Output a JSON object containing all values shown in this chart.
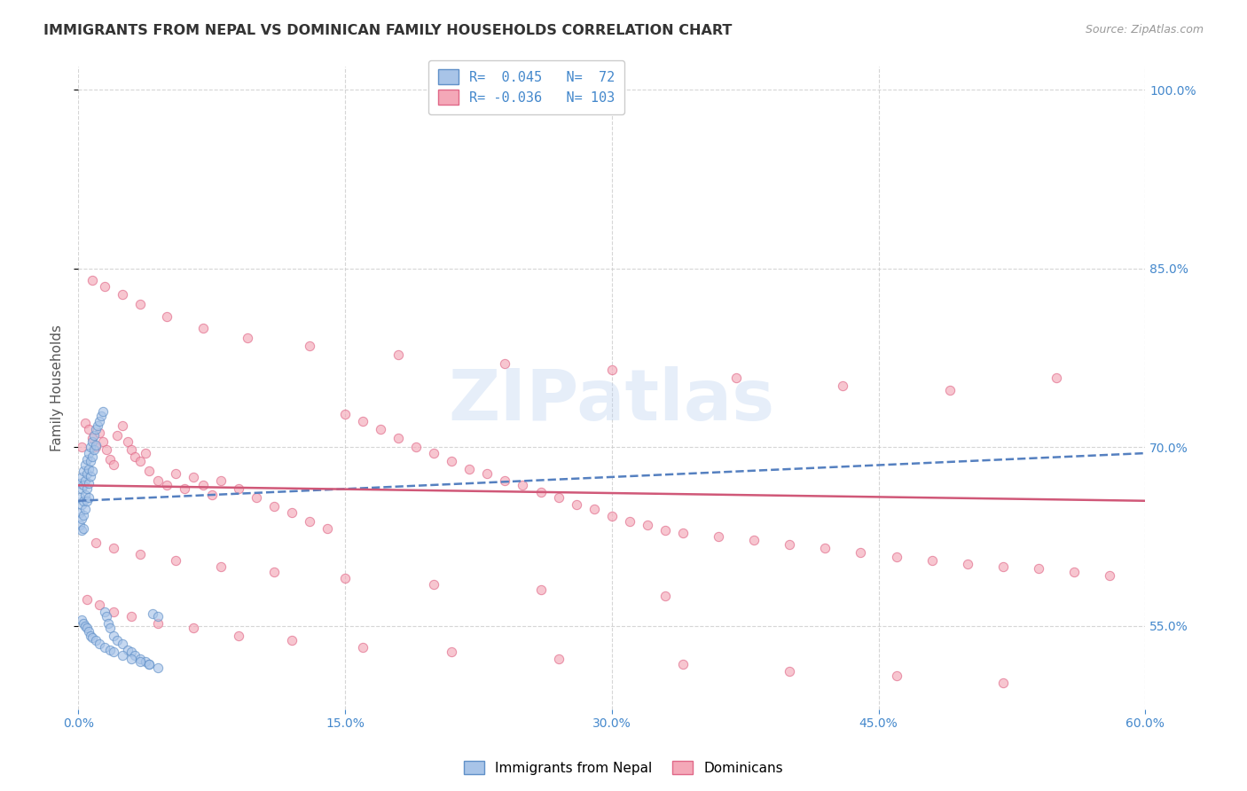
{
  "title": "IMMIGRANTS FROM NEPAL VS DOMINICAN FAMILY HOUSEHOLDS CORRELATION CHART",
  "source": "Source: ZipAtlas.com",
  "ylabel": "Family Households",
  "right_ytick_vals": [
    1.0,
    0.85,
    0.7,
    0.55
  ],
  "nepal_color": "#a8c4e8",
  "dominican_color": "#f4a8b8",
  "nepal_edge_color": "#6090c8",
  "dominican_edge_color": "#e06888",
  "nepal_line_color": "#5580c0",
  "dominican_line_color": "#d05878",
  "watermark": "ZIPatlas",
  "nepal_scatter_x": [
    0.001,
    0.001,
    0.001,
    0.001,
    0.002,
    0.002,
    0.002,
    0.002,
    0.002,
    0.003,
    0.003,
    0.003,
    0.003,
    0.003,
    0.004,
    0.004,
    0.004,
    0.004,
    0.005,
    0.005,
    0.005,
    0.005,
    0.006,
    0.006,
    0.006,
    0.006,
    0.007,
    0.007,
    0.007,
    0.008,
    0.008,
    0.008,
    0.009,
    0.009,
    0.01,
    0.01,
    0.011,
    0.012,
    0.013,
    0.014,
    0.015,
    0.016,
    0.017,
    0.018,
    0.02,
    0.022,
    0.025,
    0.028,
    0.03,
    0.032,
    0.035,
    0.038,
    0.04,
    0.042,
    0.045,
    0.002,
    0.003,
    0.004,
    0.005,
    0.006,
    0.007,
    0.008,
    0.01,
    0.012,
    0.015,
    0.018,
    0.02,
    0.025,
    0.03,
    0.035,
    0.04,
    0.045
  ],
  "nepal_scatter_y": [
    0.67,
    0.658,
    0.645,
    0.635,
    0.675,
    0.665,
    0.652,
    0.64,
    0.63,
    0.68,
    0.668,
    0.655,
    0.643,
    0.632,
    0.685,
    0.672,
    0.66,
    0.648,
    0.69,
    0.678,
    0.665,
    0.655,
    0.695,
    0.682,
    0.67,
    0.658,
    0.7,
    0.688,
    0.676,
    0.705,
    0.692,
    0.68,
    0.71,
    0.698,
    0.715,
    0.702,
    0.718,
    0.722,
    0.726,
    0.73,
    0.562,
    0.558,
    0.552,
    0.548,
    0.542,
    0.538,
    0.535,
    0.53,
    0.528,
    0.525,
    0.522,
    0.52,
    0.518,
    0.56,
    0.558,
    0.555,
    0.552,
    0.55,
    0.548,
    0.545,
    0.542,
    0.54,
    0.538,
    0.535,
    0.532,
    0.53,
    0.528,
    0.525,
    0.522,
    0.52,
    0.518,
    0.515
  ],
  "dominican_scatter_x": [
    0.002,
    0.004,
    0.006,
    0.008,
    0.01,
    0.012,
    0.014,
    0.016,
    0.018,
    0.02,
    0.022,
    0.025,
    0.028,
    0.03,
    0.032,
    0.035,
    0.038,
    0.04,
    0.045,
    0.05,
    0.055,
    0.06,
    0.065,
    0.07,
    0.075,
    0.08,
    0.09,
    0.1,
    0.11,
    0.12,
    0.13,
    0.14,
    0.15,
    0.16,
    0.17,
    0.18,
    0.19,
    0.2,
    0.21,
    0.22,
    0.23,
    0.24,
    0.25,
    0.26,
    0.27,
    0.28,
    0.29,
    0.3,
    0.31,
    0.32,
    0.33,
    0.34,
    0.36,
    0.38,
    0.4,
    0.42,
    0.44,
    0.46,
    0.48,
    0.5,
    0.52,
    0.54,
    0.56,
    0.58,
    0.008,
    0.015,
    0.025,
    0.035,
    0.05,
    0.07,
    0.095,
    0.13,
    0.18,
    0.24,
    0.3,
    0.37,
    0.43,
    0.49,
    0.55,
    0.005,
    0.012,
    0.02,
    0.03,
    0.045,
    0.065,
    0.09,
    0.12,
    0.16,
    0.21,
    0.27,
    0.34,
    0.4,
    0.46,
    0.52,
    0.01,
    0.02,
    0.035,
    0.055,
    0.08,
    0.11,
    0.15,
    0.2,
    0.26,
    0.33
  ],
  "dominican_scatter_y": [
    0.7,
    0.72,
    0.715,
    0.708,
    0.7,
    0.712,
    0.705,
    0.698,
    0.69,
    0.685,
    0.71,
    0.718,
    0.705,
    0.698,
    0.692,
    0.688,
    0.695,
    0.68,
    0.672,
    0.668,
    0.678,
    0.665,
    0.675,
    0.668,
    0.66,
    0.672,
    0.665,
    0.658,
    0.65,
    0.645,
    0.638,
    0.632,
    0.728,
    0.722,
    0.715,
    0.708,
    0.7,
    0.695,
    0.688,
    0.682,
    0.678,
    0.672,
    0.668,
    0.662,
    0.658,
    0.652,
    0.648,
    0.642,
    0.638,
    0.635,
    0.63,
    0.628,
    0.625,
    0.622,
    0.618,
    0.615,
    0.612,
    0.608,
    0.605,
    0.602,
    0.6,
    0.598,
    0.595,
    0.592,
    0.84,
    0.835,
    0.828,
    0.82,
    0.81,
    0.8,
    0.792,
    0.785,
    0.778,
    0.77,
    0.765,
    0.758,
    0.752,
    0.748,
    0.758,
    0.572,
    0.568,
    0.562,
    0.558,
    0.552,
    0.548,
    0.542,
    0.538,
    0.532,
    0.528,
    0.522,
    0.518,
    0.512,
    0.508,
    0.502,
    0.62,
    0.615,
    0.61,
    0.605,
    0.6,
    0.595,
    0.59,
    0.585,
    0.58,
    0.575
  ],
  "xlim": [
    0.0,
    0.6
  ],
  "ylim": [
    0.48,
    1.02
  ],
  "nepal_trend_x": [
    0.0,
    0.6
  ],
  "nepal_trend_y": [
    0.655,
    0.695
  ],
  "dominican_trend_x": [
    0.0,
    0.6
  ],
  "dominican_trend_y": [
    0.668,
    0.655
  ],
  "bg_color": "#ffffff",
  "grid_color": "#cccccc",
  "title_color": "#333333",
  "scatter_size": 55,
  "scatter_alpha": 0.65
}
